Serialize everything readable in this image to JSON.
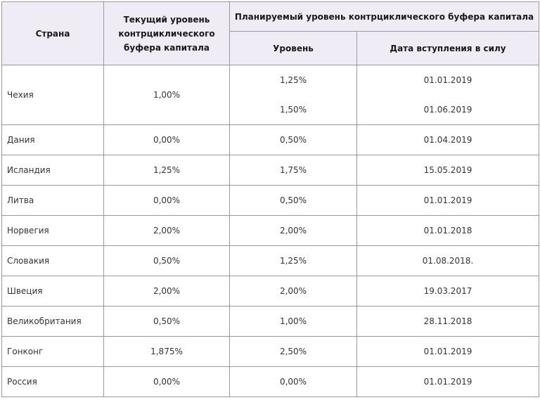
{
  "headers": {
    "country": "Страна",
    "current": "Текущий уровень контрциклического буфера капитала",
    "planned": "Планируемый уровень контрциклического буфера капитала",
    "level": "Уровень",
    "date": "Дата вступления в силу"
  },
  "rows": [
    {
      "country": "Чехия",
      "current": "1,00%",
      "planned": [
        {
          "level": "1,25%",
          "date": "01.01.2019"
        },
        {
          "level": "1,50%",
          "date": "01.06.2019"
        }
      ]
    },
    {
      "country": "Дания",
      "current": "0,00%",
      "planned": [
        {
          "level": "0,50%",
          "date": "01.04.2019"
        }
      ]
    },
    {
      "country": "Исландия",
      "current": "1,25%",
      "planned": [
        {
          "level": "1,75%",
          "date": "15.05.2019"
        }
      ]
    },
    {
      "country": "Литва",
      "current": "0,00%",
      "planned": [
        {
          "level": "0,50%",
          "date": "01.01.2019"
        }
      ]
    },
    {
      "country": "Норвегия",
      "current": "2,00%",
      "planned": [
        {
          "level": "2,00%",
          "date": "01.01.2018"
        }
      ]
    },
    {
      "country": "Словакия",
      "current": "0,50%",
      "planned": [
        {
          "level": "1,25%",
          "date": "01.08.2018."
        }
      ]
    },
    {
      "country": "Швеция",
      "current": "2,00%",
      "planned": [
        {
          "level": "2,00%",
          "date": "19.03.2017"
        }
      ]
    },
    {
      "country": "Великобритания",
      "current": "0,50%",
      "planned": [
        {
          "level": "1,00%",
          "date": "28.11.2018"
        }
      ]
    },
    {
      "country": "Гонконг",
      "current": "1,875%",
      "planned": [
        {
          "level": "2,50%",
          "date": "01.01.2019"
        }
      ]
    },
    {
      "country": "Россия",
      "current": "0,00%",
      "planned": [
        {
          "level": "0,00%",
          "date": "01.01.2019"
        }
      ]
    }
  ]
}
